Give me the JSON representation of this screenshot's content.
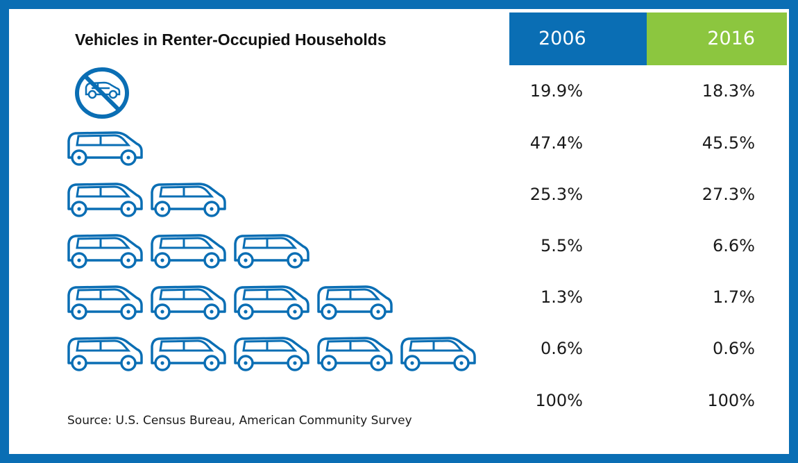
{
  "chart_data": {
    "type": "table",
    "title": "Vehicles in Renter-Occupied Households",
    "columns": [
      "2006",
      "2016"
    ],
    "column_colors": [
      "#0a6eb4",
      "#8cc63f"
    ],
    "rows": [
      {
        "vehicles": 0,
        "icon": "no-car-icon",
        "values": [
          "19.9%",
          "18.3%"
        ]
      },
      {
        "vehicles": 1,
        "icon": "car-icon",
        "values": [
          "47.4%",
          "45.5%"
        ]
      },
      {
        "vehicles": 2,
        "icon": "car-icon",
        "values": [
          "25.3%",
          "27.3%"
        ]
      },
      {
        "vehicles": 3,
        "icon": "car-icon",
        "values": [
          "5.5%",
          "6.6%"
        ]
      },
      {
        "vehicles": 4,
        "icon": "car-icon",
        "values": [
          "1.3%",
          "1.7%"
        ]
      },
      {
        "vehicles": 5,
        "icon": "car-icon",
        "values": [
          "0.6%",
          "0.6%"
        ]
      }
    ],
    "total": [
      "100%",
      "100%"
    ],
    "source": "Source: U.S. Census Bureau, American Community Survey"
  },
  "colors": {
    "frame": "#0a6eb4",
    "icon": "#0a6eb4",
    "header_2006": "#0a6eb4",
    "header_2016": "#8cc63f"
  }
}
